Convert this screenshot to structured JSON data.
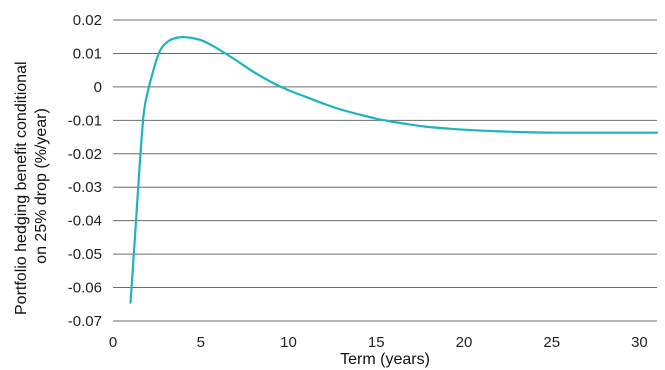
{
  "chart_data": {
    "type": "line",
    "title": "",
    "xlabel": "Term (years)",
    "ylabel_lines": [
      "Portfolio hedging benefit conditional",
      "on 25% drop (%/year)"
    ],
    "xlim": [
      0,
      31
    ],
    "ylim": [
      -0.07,
      0.02
    ],
    "x_ticks": [
      0,
      5,
      10,
      15,
      20,
      25,
      30
    ],
    "y_ticks": [
      0.02,
      0.01,
      0,
      -0.01,
      -0.02,
      -0.03,
      -0.04,
      -0.05,
      -0.06,
      -0.07
    ],
    "grid": "horizontal",
    "line_color": "#1fb3c2",
    "series": [
      {
        "x": [
          1.0,
          1.25,
          1.5,
          1.75,
          2.0,
          2.25,
          2.5,
          2.75,
          3.0,
          3.25,
          3.5,
          3.75,
          4.0,
          4.25,
          4.5,
          5.0,
          5.5,
          6.0,
          7.0,
          8.0,
          9.0,
          10.0,
          11.0,
          12.0,
          13.0,
          14.0,
          15.0,
          16.0,
          17.0,
          18.0,
          20.0,
          22.0,
          24.0,
          26.0,
          28.0,
          30.0,
          31.0
        ],
        "y": [
          -0.0645,
          -0.045,
          -0.025,
          -0.008,
          -0.001,
          0.004,
          0.0085,
          0.0115,
          0.013,
          0.014,
          0.0145,
          0.0148,
          0.0149,
          0.0148,
          0.0146,
          0.014,
          0.0128,
          0.0113,
          0.008,
          0.0045,
          0.0015,
          -0.001,
          -0.003,
          -0.005,
          -0.0068,
          -0.0082,
          -0.0095,
          -0.0105,
          -0.0113,
          -0.012,
          -0.0128,
          -0.0133,
          -0.0136,
          -0.0137,
          -0.0137,
          -0.0137,
          -0.0137
        ]
      }
    ]
  }
}
